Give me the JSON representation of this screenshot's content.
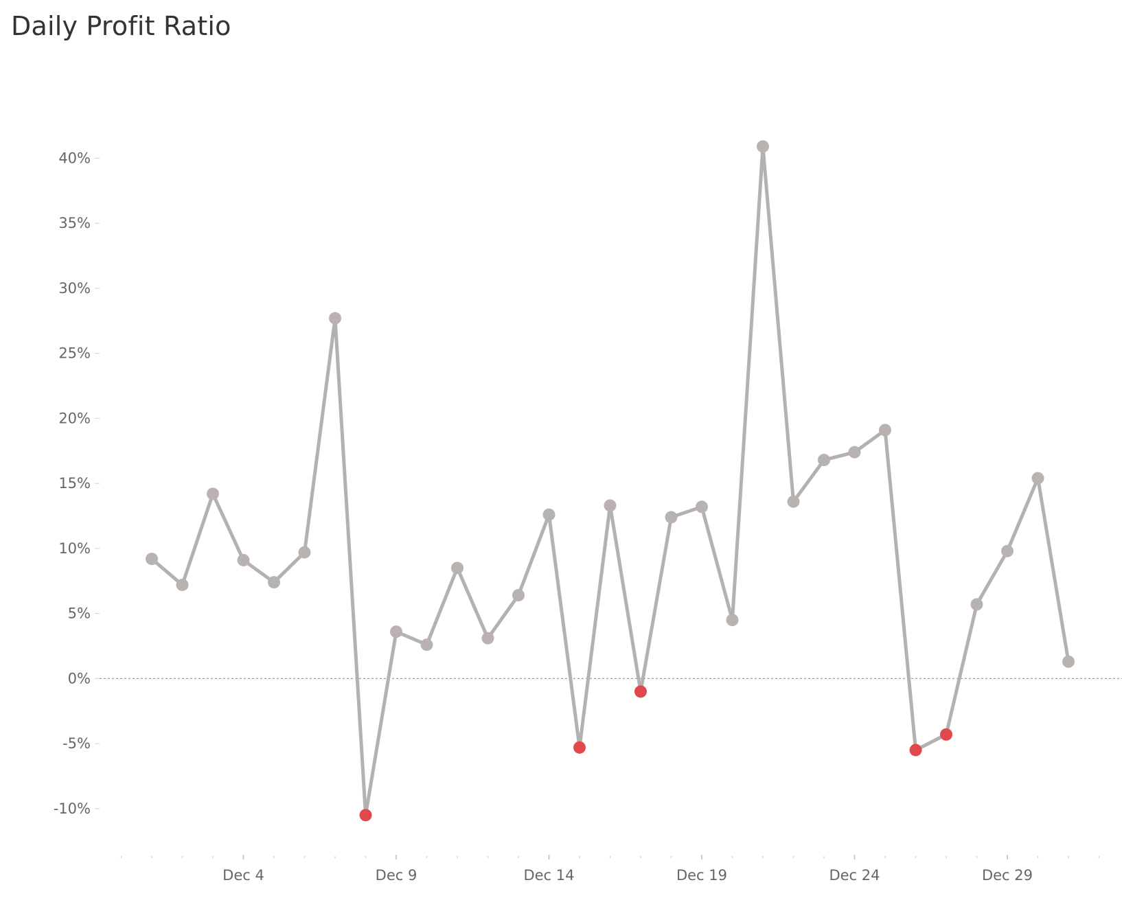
{
  "chart_data": {
    "type": "line",
    "title": "Daily Profit Ratio",
    "xlabel": "",
    "ylabel": "",
    "x": [
      "Dec 1",
      "Dec 2",
      "Dec 3",
      "Dec 4",
      "Dec 5",
      "Dec 6",
      "Dec 7",
      "Dec 8",
      "Dec 9",
      "Dec 10",
      "Dec 11",
      "Dec 12",
      "Dec 13",
      "Dec 14",
      "Dec 15",
      "Dec 16",
      "Dec 17",
      "Dec 18",
      "Dec 19",
      "Dec 20",
      "Dec 21",
      "Dec 22",
      "Dec 23",
      "Dec 24",
      "Dec 25",
      "Dec 26",
      "Dec 27",
      "Dec 28",
      "Dec 29",
      "Dec 30",
      "Dec 31"
    ],
    "series": [
      {
        "values": [
          9.2,
          7.2,
          14.2,
          9.1,
          7.4,
          9.7,
          27.7,
          -10.5,
          3.6,
          2.6,
          8.5,
          3.1,
          6.4,
          12.6,
          -5.3,
          13.3,
          -1.0,
          12.4,
          13.2,
          4.5,
          40.9,
          13.6,
          16.8,
          17.4,
          19.1,
          -5.5,
          -4.3,
          5.7,
          9.8,
          15.4,
          1.3
        ]
      }
    ],
    "ylim": [
      -13.7,
      45.3
    ],
    "yticks": [
      -10,
      -5,
      0,
      5,
      10,
      15,
      20,
      25,
      30,
      35,
      40
    ],
    "ytick_labels": [
      "-10%",
      "-5%",
      "0%",
      "5%",
      "10%",
      "15%",
      "20%",
      "25%",
      "30%",
      "35%",
      "40%"
    ],
    "xticks": [
      "Dec 4",
      "Dec 9",
      "Dec 14",
      "Dec 19",
      "Dec 24",
      "Dec 29"
    ],
    "grid": false,
    "zero_line": true,
    "colors": {
      "line": "#b2b2b2",
      "positive_marker": "#b9b2b0",
      "negative_marker": "#e0484c",
      "zero_line": "#9a9a9a",
      "tick_text": "#666666"
    }
  }
}
